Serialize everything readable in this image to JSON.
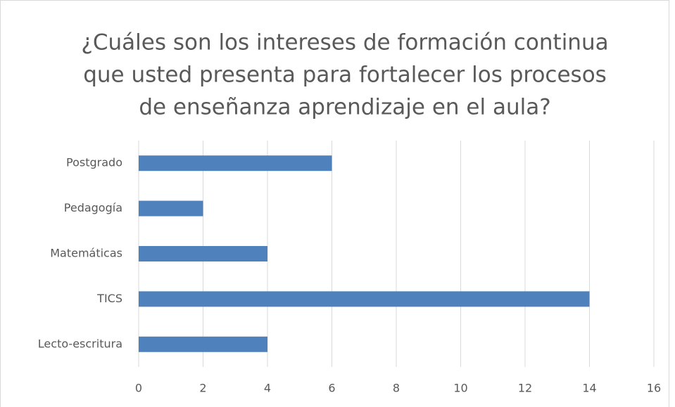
{
  "chart_data": {
    "type": "barh",
    "title": [
      "¿Cuáles son los intereses de formación continua",
      "que usted presenta para fortalecer  los procesos",
      "de enseñanza aprendizaje en el aula?"
    ],
    "categories": [
      "Postgrado",
      "Pedagogía",
      "Matemáticas",
      "TICS",
      "Lecto-escritura"
    ],
    "values": [
      6,
      2,
      4,
      14,
      4
    ],
    "color": "#4f81bd",
    "xlim": [
      0,
      16
    ],
    "xticks": [
      0,
      2,
      4,
      6,
      8,
      10,
      12,
      14,
      16
    ],
    "grid": true
  }
}
